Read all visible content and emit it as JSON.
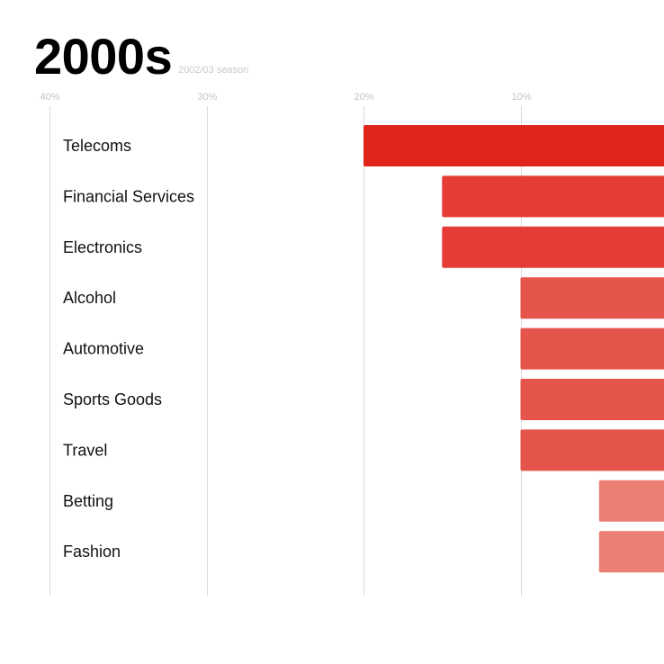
{
  "title": "2000s",
  "subtitle": "2002/03 season",
  "chart_data": {
    "type": "bar",
    "orientation": "horizontal",
    "direction": "right-to-left",
    "title": "2000s",
    "subtitle": "2002/03 season",
    "xlim": [
      0,
      40
    ],
    "x_ticks": [
      40,
      30,
      20,
      10
    ],
    "x_tick_labels": [
      "40%",
      "30%",
      "20%",
      "10%"
    ],
    "grid": true,
    "categories": [
      "Telecoms",
      "Financial Services",
      "Electronics",
      "Alcohol",
      "Automotive",
      "Sports Goods",
      "Travel",
      "Betting",
      "Fashion"
    ],
    "values": [
      20,
      15,
      15,
      10,
      10,
      10,
      10,
      5,
      5
    ],
    "unit": "%"
  },
  "colors": {
    "bar_strong": "#e0261c",
    "bar_medium": "#e53c36",
    "bar_light": "#e5554c",
    "bar_faint": "#ec7f73",
    "grid": "#d9d9d9",
    "tick_text": "#c4c4c4",
    "label_text": "#111111"
  }
}
